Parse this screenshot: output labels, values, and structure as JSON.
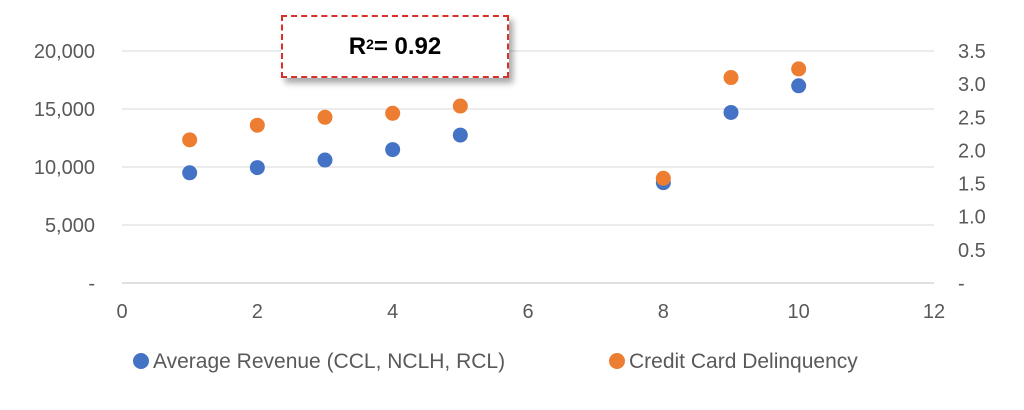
{
  "annotation": {
    "r": "R",
    "sup": "2",
    "rest": "= 0.92"
  },
  "chart_data": {
    "type": "scatter",
    "x": [
      1,
      2,
      3,
      4,
      5,
      8,
      9,
      10
    ],
    "series": [
      {
        "name": "Average Revenue (CCL, NCLH, RCL)",
        "axis": "left",
        "color": "#4472c4",
        "y": [
          9500,
          9950,
          10600,
          11500,
          12750,
          8650,
          14700,
          17000
        ]
      },
      {
        "name": "Credit Card Delinquency",
        "axis": "right",
        "color": "#ed7d31",
        "y": [
          2.16,
          2.38,
          2.5,
          2.56,
          2.67,
          1.58,
          3.1,
          3.23
        ]
      }
    ],
    "xlim": [
      0,
      12
    ],
    "x_ticks": [
      "0",
      "2",
      "4",
      "6",
      "8",
      "10",
      "12"
    ],
    "ylim_left": [
      0,
      20000
    ],
    "y_left_ticks": [
      "-",
      "5,000",
      "10,000",
      "15,000",
      "20,000"
    ],
    "ylim_right": [
      0,
      3.5
    ],
    "y_right_ticks": [
      "-",
      "0.5",
      "1.0",
      "1.5",
      "2.0",
      "2.5",
      "3.0",
      "3.5"
    ],
    "grid": true,
    "legend_position": "bottom"
  }
}
